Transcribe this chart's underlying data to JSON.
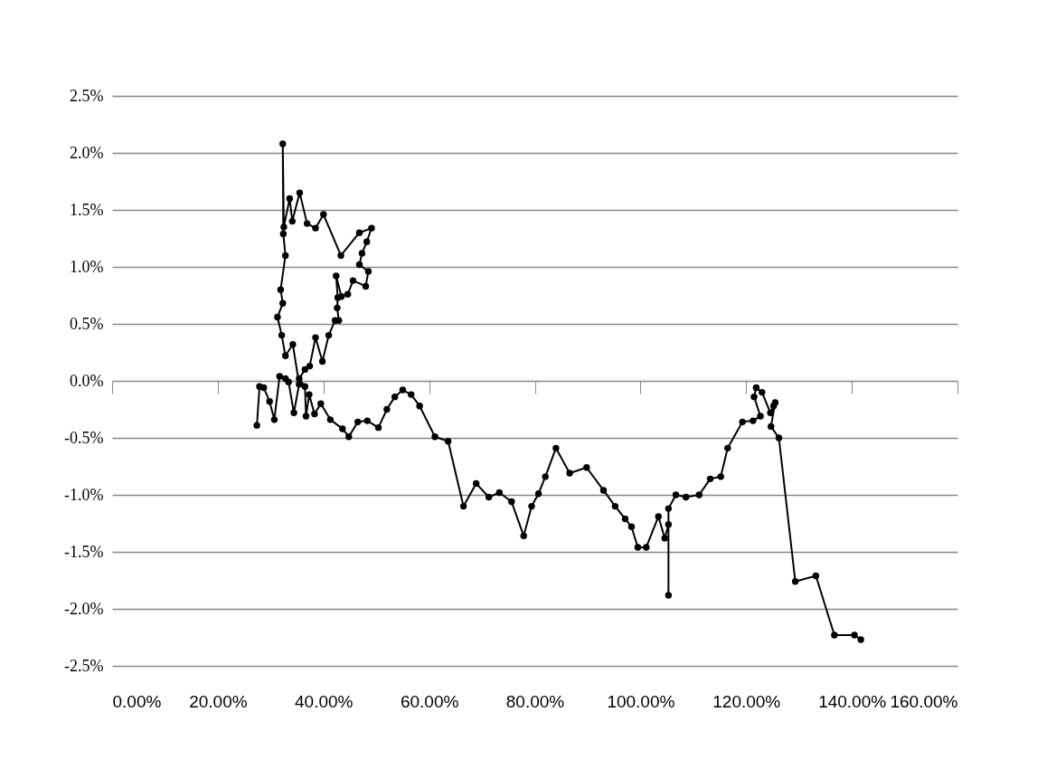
{
  "chart_data": {
    "type": "line",
    "marker": "circle",
    "line_style": "solid",
    "grid": "y",
    "xlim": [
      0,
      160
    ],
    "ylim": [
      -2.5,
      2.5
    ],
    "xticks": [
      {
        "value": 0,
        "label": "0.00%"
      },
      {
        "value": 20,
        "label": "20.00%"
      },
      {
        "value": 40,
        "label": "40.00%"
      },
      {
        "value": 60,
        "label": "60.00%"
      },
      {
        "value": 80,
        "label": "80.00%"
      },
      {
        "value": 100,
        "label": "100.00%"
      },
      {
        "value": 120,
        "label": "120.00%"
      },
      {
        "value": 140,
        "label": "140.00%"
      },
      {
        "value": 160,
        "label": "160.00%"
      }
    ],
    "yticks": [
      {
        "value": -2.5,
        "label": "-2.5%"
      },
      {
        "value": -2,
        "label": "-2.0%"
      },
      {
        "value": -1.5,
        "label": "-1.5%"
      },
      {
        "value": -1,
        "label": "-1.0%"
      },
      {
        "value": -0.5,
        "label": "-0.5%"
      },
      {
        "value": 0,
        "label": "0.0%"
      },
      {
        "value": 0.5,
        "label": "0.5%"
      },
      {
        "value": 1,
        "label": "1.0%"
      },
      {
        "value": 1.5,
        "label": "1.5%"
      },
      {
        "value": 2,
        "label": "2.0%"
      },
      {
        "value": 2.5,
        "label": "2.5%"
      }
    ],
    "series": [
      {
        "color": "#000000",
        "x": [
          27.4,
          27.9,
          28.7,
          29.8,
          30.7,
          31.7,
          32.8,
          33.4,
          34.4,
          35.4,
          34.2,
          32.8,
          32.1,
          31.3,
          32.3,
          31.9,
          32.8,
          32.4,
          32.3,
          32.5,
          33.6,
          34.1,
          35.5,
          36.9,
          38.5,
          40.0,
          43.3,
          46.8,
          49.1,
          48.2,
          47.3,
          46.8,
          48.5,
          48.0,
          45.6,
          44.6,
          43.4,
          42.4,
          42.7,
          42.6,
          42.9,
          42.2,
          41.0,
          39.8,
          38.5,
          37.4,
          36.5,
          35.4,
          36.5,
          36.7,
          37.3,
          38.3,
          39.5,
          41.3,
          43.6,
          44.8,
          46.5,
          48.3,
          50.4,
          52.0,
          53.5,
          55.0,
          56.6,
          58.2,
          61.1,
          63.6,
          66.5,
          68.9,
          71.3,
          73.3,
          75.6,
          77.9,
          79.4,
          80.7,
          82.0,
          84.0,
          86.6,
          89.8,
          93.0,
          95.2,
          97.1,
          98.3,
          99.5,
          101.1,
          103.4,
          104.6,
          105.3,
          105.3,
          105.3,
          106.7,
          108.6,
          111.1,
          113.2,
          115.2,
          116.5,
          119.3,
          121.3,
          122.7,
          121.5,
          121.9,
          123.0,
          124.6,
          125.2,
          125.5,
          124.7,
          126.2,
          129.3,
          133.2,
          136.7,
          140.5,
          141.7
        ],
        "values": [
          -0.39,
          -0.05,
          -0.06,
          -0.18,
          -0.34,
          0.04,
          0.02,
          -0.01,
          -0.28,
          -0.03,
          0.32,
          0.22,
          0.4,
          0.56,
          0.68,
          0.8,
          1.1,
          1.29,
          2.08,
          1.35,
          1.6,
          1.4,
          1.65,
          1.38,
          1.34,
          1.46,
          1.1,
          1.3,
          1.34,
          1.22,
          1.12,
          1.02,
          0.96,
          0.83,
          0.88,
          0.76,
          0.74,
          0.92,
          0.73,
          0.64,
          0.53,
          0.53,
          0.4,
          0.17,
          0.38,
          0.13,
          0.1,
          0.02,
          -0.05,
          -0.31,
          -0.12,
          -0.29,
          -0.2,
          -0.34,
          -0.42,
          -0.49,
          -0.36,
          -0.35,
          -0.41,
          -0.25,
          -0.14,
          -0.08,
          -0.12,
          -0.22,
          -0.49,
          -0.53,
          -1.1,
          -0.9,
          -1.02,
          -0.98,
          -1.06,
          -1.36,
          -1.1,
          -0.99,
          -0.84,
          -0.59,
          -0.81,
          -0.76,
          -0.96,
          -1.1,
          -1.21,
          -1.28,
          -1.46,
          -1.46,
          -1.19,
          -1.38,
          -1.26,
          -1.88,
          -1.12,
          -1.0,
          -1.02,
          -1.0,
          -0.86,
          -0.84,
          -0.59,
          -0.36,
          -0.35,
          -0.31,
          -0.14,
          -0.06,
          -0.1,
          -0.28,
          -0.22,
          -0.19,
          -0.4,
          -0.5,
          -1.76,
          -1.71,
          -2.23,
          -2.23,
          -2.27
        ]
      }
    ]
  }
}
